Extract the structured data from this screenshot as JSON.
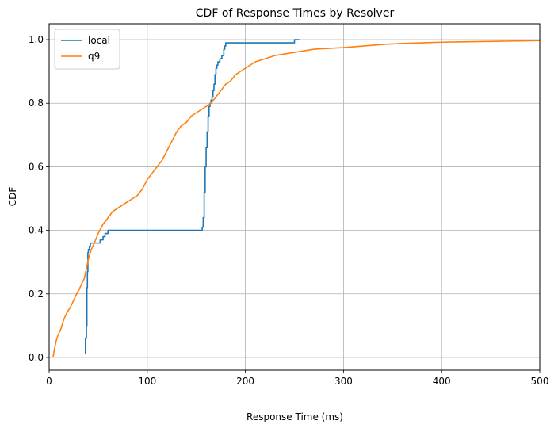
{
  "chart_data": {
    "type": "line",
    "title": "CDF of Response Times by Resolver",
    "xlabel": "Response Time (ms)",
    "ylabel": "CDF",
    "xlim": [
      0,
      500
    ],
    "ylim": [
      -0.04,
      1.05
    ],
    "xticks": [
      0,
      100,
      200,
      300,
      400,
      500
    ],
    "yticks": [
      0.0,
      0.2,
      0.4,
      0.6,
      0.8,
      1.0
    ],
    "xtick_labels": [
      "0",
      "100",
      "200",
      "300",
      "400",
      "500"
    ],
    "ytick_labels": [
      "0.0",
      "0.2",
      "0.4",
      "0.6",
      "0.8",
      "1.0"
    ],
    "grid": true,
    "legend_position": "top-left",
    "series": [
      {
        "name": "local",
        "color": "#1f77b4",
        "step": true,
        "x": [
          37,
          38,
          38.5,
          39,
          39.5,
          40,
          41,
          42,
          45,
          48,
          52,
          55,
          57,
          60,
          70,
          100,
          130,
          150,
          156,
          157,
          158,
          159,
          160,
          161,
          162,
          163,
          164,
          165,
          166,
          167,
          168,
          169,
          170,
          171,
          172,
          174,
          176,
          178,
          179,
          180,
          181,
          182,
          190,
          210,
          230,
          250,
          255
        ],
        "y": [
          0.01,
          0.06,
          0.1,
          0.22,
          0.27,
          0.33,
          0.34,
          0.35,
          0.36,
          0.36,
          0.36,
          0.37,
          0.38,
          0.39,
          0.4,
          0.4,
          0.4,
          0.4,
          0.4,
          0.41,
          0.44,
          0.52,
          0.6,
          0.66,
          0.71,
          0.76,
          0.79,
          0.8,
          0.81,
          0.82,
          0.84,
          0.86,
          0.89,
          0.91,
          0.92,
          0.93,
          0.94,
          0.95,
          0.97,
          0.98,
          0.99,
          0.99,
          0.99,
          0.99,
          0.99,
          0.99,
          1.0
        ]
      },
      {
        "name": "q9",
        "color": "#ff7f0e",
        "step": false,
        "x": [
          4,
          5,
          7,
          9,
          12,
          15,
          18,
          20,
          22,
          25,
          28,
          30,
          33,
          36,
          38,
          40,
          43,
          46,
          50,
          55,
          58,
          60,
          65,
          70,
          75,
          80,
          85,
          90,
          95,
          100,
          105,
          110,
          115,
          120,
          125,
          130,
          135,
          140,
          145,
          150,
          155,
          160,
          165,
          170,
          175,
          180,
          185,
          190,
          195,
          200,
          210,
          220,
          230,
          240,
          250,
          260,
          270,
          280,
          300,
          320,
          340,
          360,
          380,
          400,
          420,
          440,
          460,
          480,
          500
        ],
        "y": [
          0.0,
          0.02,
          0.05,
          0.07,
          0.09,
          0.12,
          0.14,
          0.15,
          0.16,
          0.18,
          0.2,
          0.21,
          0.23,
          0.25,
          0.28,
          0.31,
          0.34,
          0.36,
          0.39,
          0.42,
          0.43,
          0.44,
          0.46,
          0.47,
          0.48,
          0.49,
          0.5,
          0.51,
          0.53,
          0.56,
          0.58,
          0.6,
          0.62,
          0.65,
          0.68,
          0.71,
          0.73,
          0.74,
          0.76,
          0.77,
          0.78,
          0.79,
          0.8,
          0.82,
          0.84,
          0.86,
          0.87,
          0.89,
          0.9,
          0.91,
          0.93,
          0.94,
          0.95,
          0.955,
          0.96,
          0.965,
          0.97,
          0.972,
          0.975,
          0.98,
          0.985,
          0.988,
          0.99,
          0.992,
          0.993,
          0.994,
          0.995,
          0.996,
          0.997
        ]
      }
    ]
  }
}
